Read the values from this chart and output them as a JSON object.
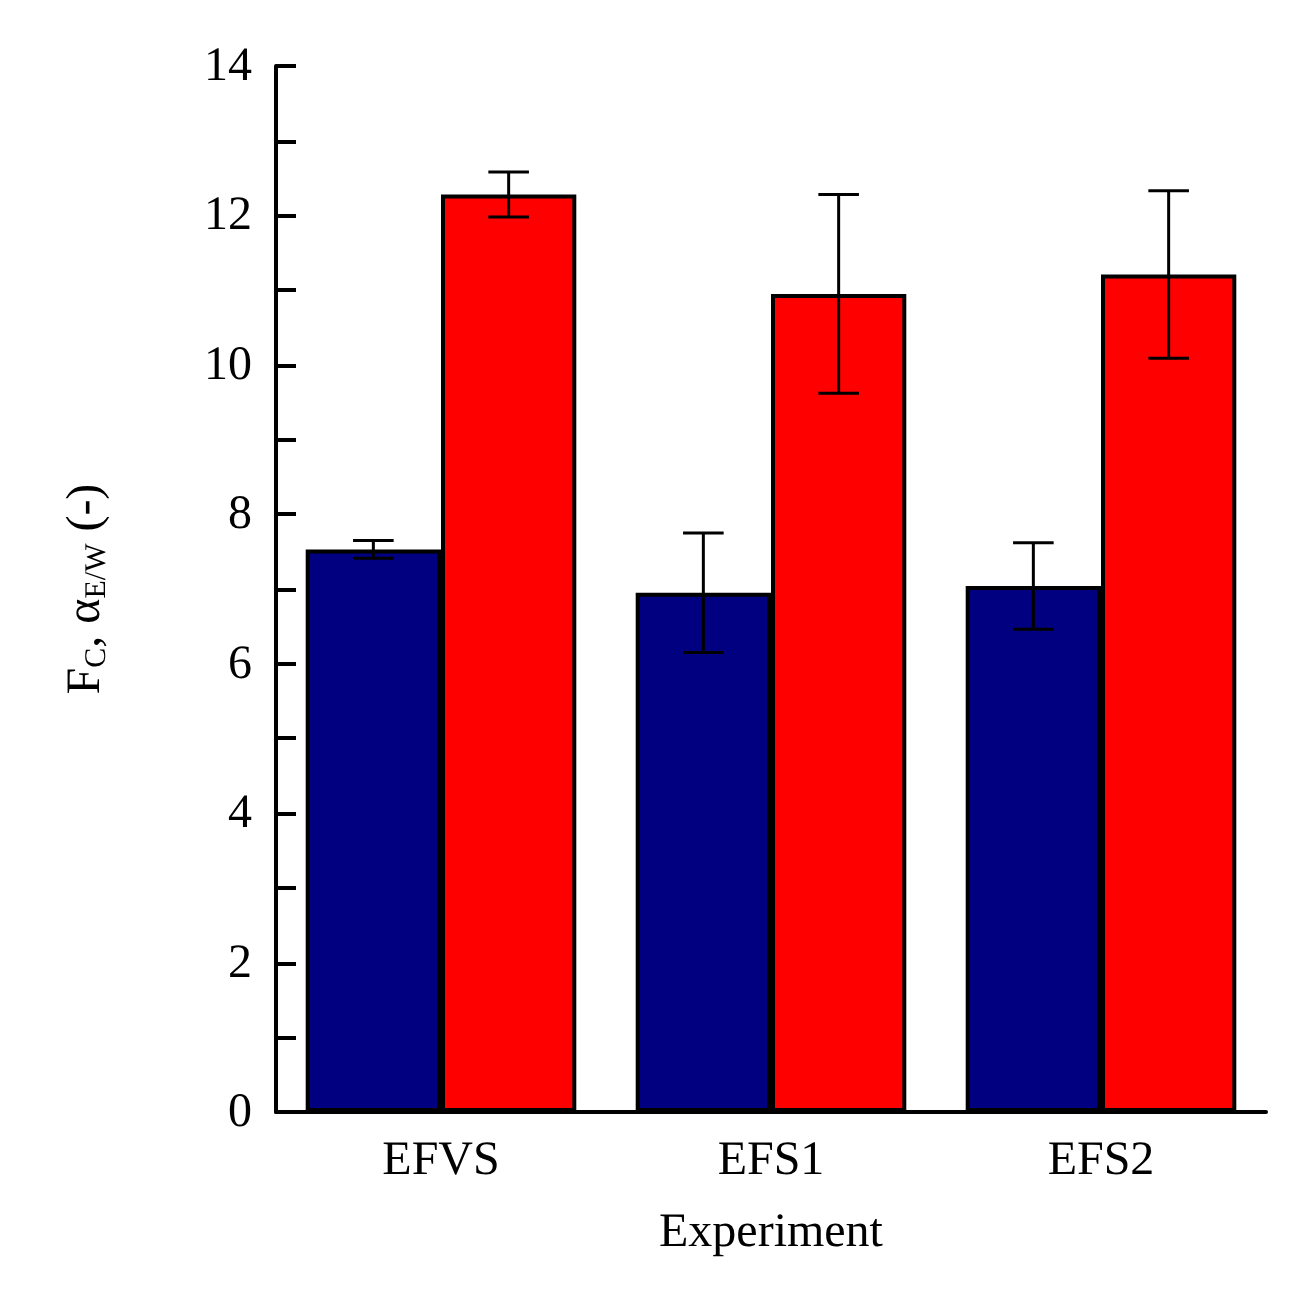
{
  "chart_data": {
    "type": "bar",
    "xlabel": "Experiment",
    "ylabel": "F$_{C}$, α$_{E/W}$ (-)",
    "categories": [
      "EFVS",
      "EFS1",
      "EFS2"
    ],
    "series": [
      {
        "color": "#000080",
        "values": [
          7.53,
          6.95,
          7.04
        ],
        "errors": [
          0.12,
          0.8,
          0.58
        ]
      },
      {
        "color": "#ff0000",
        "values": [
          12.28,
          10.95,
          11.21
        ],
        "errors": [
          0.3,
          1.33,
          1.12
        ]
      }
    ],
    "ylim": [
      0,
      14
    ],
    "yticks": [
      0,
      {
        "value": 1,
        "label": null
      },
      2,
      {
        "value": 3,
        "label": null
      },
      4,
      {
        "value": 5,
        "label": null
      },
      6,
      {
        "value": 7,
        "label": null
      },
      8,
      {
        "value": 9,
        "label": null
      },
      10,
      {
        "value": 11,
        "label": null
      },
      12,
      {
        "value": 13,
        "label": null
      },
      14
    ],
    "grid": false
  }
}
